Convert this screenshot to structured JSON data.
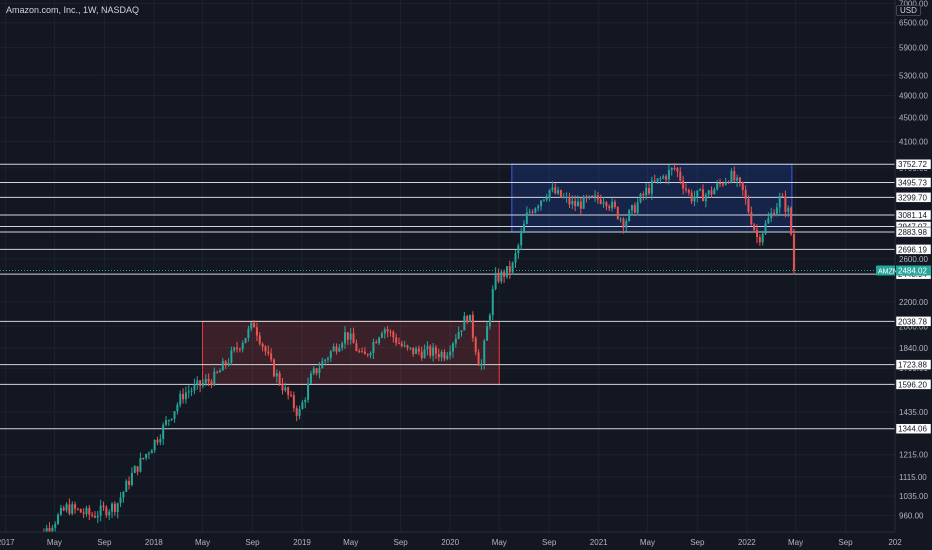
{
  "header": {
    "title": "Amazon.com, Inc., 1W, NASDAQ",
    "currency": "USD"
  },
  "chart_data": {
    "type": "candlestick",
    "symbol": "AMZN",
    "interval": "1W",
    "last_price": 2484.02,
    "last_price_color": "#26a69a",
    "up_color": "#26a69a",
    "down_color": "#ef5350",
    "y_scale": "log",
    "ylim": [
      900,
      7100
    ],
    "x_start": "2016-12-18",
    "x_end": "2023-01-01",
    "y_ticks": [
      7000,
      6500,
      5900,
      5300,
      4900,
      4500,
      4100,
      3700,
      2600,
      2200,
      2000,
      1840,
      1700,
      1435,
      1215,
      1115,
      1035,
      960
    ],
    "y_tick_labels": [
      "7000.00",
      "6500.00",
      "5900.00",
      "5300.00",
      "4900.00",
      "4500.00",
      "4100.00",
      "3700.00",
      "2600.00",
      "2200.00",
      "2000.00",
      "1840.00",
      "1700.00",
      "1435.00",
      "1215.00",
      "1115.00",
      "1035.00",
      "960.00"
    ],
    "x_ticks": [
      {
        "date": "2017-01-01",
        "label": "2017"
      },
      {
        "date": "2017-05-01",
        "label": "May"
      },
      {
        "date": "2017-09-01",
        "label": "Sep"
      },
      {
        "date": "2018-01-01",
        "label": "2018"
      },
      {
        "date": "2018-05-01",
        "label": "May"
      },
      {
        "date": "2018-09-01",
        "label": "Sep"
      },
      {
        "date": "2019-01-01",
        "label": "2019"
      },
      {
        "date": "2019-05-01",
        "label": "May"
      },
      {
        "date": "2019-09-01",
        "label": "Sep"
      },
      {
        "date": "2020-01-01",
        "label": "2020"
      },
      {
        "date": "2020-05-01",
        "label": "May"
      },
      {
        "date": "2020-09-01",
        "label": "Sep"
      },
      {
        "date": "2021-01-01",
        "label": "2021"
      },
      {
        "date": "2021-05-01",
        "label": "May"
      },
      {
        "date": "2021-09-01",
        "label": "Sep"
      },
      {
        "date": "2022-01-01",
        "label": "2022"
      },
      {
        "date": "2022-05-01",
        "label": "May"
      },
      {
        "date": "2022-09-01",
        "label": "Sep"
      },
      {
        "date": "2023-01-01",
        "label": "202"
      }
    ],
    "levels": [
      3752.72,
      3495.73,
      3299.7,
      3081.14,
      2947.07,
      2883.98,
      2696.19,
      2448.94,
      2038.78,
      1723.88,
      1596.2,
      1344.06
    ],
    "level_labels": [
      "3752.72",
      "3495.73",
      "3299.70",
      "3081.14",
      "2947.07",
      "2883.98",
      "2696.19",
      "2448.94",
      "2038.78",
      "1723.88",
      "1596.20",
      "1344.06"
    ],
    "zones": [
      {
        "from": "2018-05-01",
        "to": "2020-05-01",
        "low": 1596.2,
        "high": 2038.78,
        "fill": "#ef5350",
        "stroke": "#f23645"
      },
      {
        "from": "2020-06-01",
        "to": "2022-04-22",
        "low": 2883.98,
        "high": 3752.72,
        "fill": "#2962ff",
        "stroke": "#3d5afe"
      }
    ],
    "price_path": [
      [
        "2017-03-01",
        850
      ],
      [
        "2017-06-01",
        990
      ],
      [
        "2017-08-01",
        960
      ],
      [
        "2017-10-01",
        1000
      ],
      [
        "2017-11-10",
        1130
      ],
      [
        "2018-01-10",
        1300
      ],
      [
        "2018-03-15",
        1540
      ],
      [
        "2018-06-01",
        1640
      ],
      [
        "2018-07-15",
        1800
      ],
      [
        "2018-09-05",
        2020
      ],
      [
        "2018-10-20",
        1700
      ],
      [
        "2018-12-24",
        1420
      ],
      [
        "2019-01-25",
        1650
      ],
      [
        "2019-04-20",
        1950
      ],
      [
        "2019-06-01",
        1760
      ],
      [
        "2019-07-20",
        2000
      ],
      [
        "2019-09-15",
        1820
      ],
      [
        "2019-12-20",
        1800
      ],
      [
        "2020-02-15",
        2100
      ],
      [
        "2020-03-16",
        1690
      ],
      [
        "2020-04-20",
        2400
      ],
      [
        "2020-06-01",
        2500
      ],
      [
        "2020-07-10",
        3100
      ],
      [
        "2020-09-01",
        3400
      ],
      [
        "2020-11-01",
        3200
      ],
      [
        "2021-01-15",
        3300
      ],
      [
        "2021-03-05",
        3000
      ],
      [
        "2021-05-01",
        3400
      ],
      [
        "2021-07-08",
        3700
      ],
      [
        "2021-08-15",
        3300
      ],
      [
        "2021-10-01",
        3350
      ],
      [
        "2021-11-20",
        3600
      ],
      [
        "2021-12-20",
        3400
      ],
      [
        "2022-01-28",
        2800
      ],
      [
        "2022-03-25",
        3300
      ],
      [
        "2022-04-15",
        3100
      ],
      [
        "2022-04-29",
        2484
      ]
    ]
  }
}
